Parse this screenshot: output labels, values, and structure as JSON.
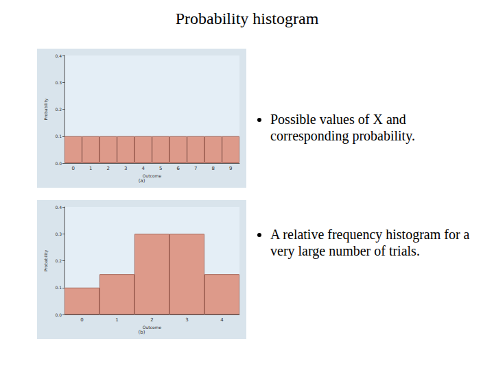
{
  "title": "Probability histogram",
  "bullets": [
    "Possible values of X and corresponding probability.",
    "A relative frequency histogram for a very large number of trials."
  ],
  "chart_data": [
    {
      "type": "bar",
      "subtitle": "(a)",
      "x_label": "Outcome",
      "y_label": "Probability",
      "categories": [
        0,
        1,
        2,
        3,
        4,
        5,
        6,
        7,
        8,
        9
      ],
      "values": [
        0.1,
        0.1,
        0.1,
        0.1,
        0.1,
        0.1,
        0.1,
        0.1,
        0.1,
        0.1
      ],
      "color": "#dd9a8a",
      "ylim": [
        0,
        0.4
      ],
      "yticks": [
        {
          "value": 0,
          "label": "0.0"
        },
        0.1,
        0.2,
        0.3,
        0.4
      ],
      "grid": false
    },
    {
      "type": "bar",
      "subtitle": "(b)",
      "x_label": "Outcome",
      "y_label": "Probability",
      "categories": [
        0,
        1,
        2,
        3,
        4
      ],
      "values": [
        0.1,
        0.15,
        0.3,
        0.3,
        0.15
      ],
      "color": "#dd9a8a",
      "ylim": [
        0,
        0.4
      ],
      "yticks": [
        {
          "value": 0,
          "label": "0.0"
        },
        0.1,
        0.2,
        0.3,
        0.4
      ],
      "grid": false
    }
  ]
}
